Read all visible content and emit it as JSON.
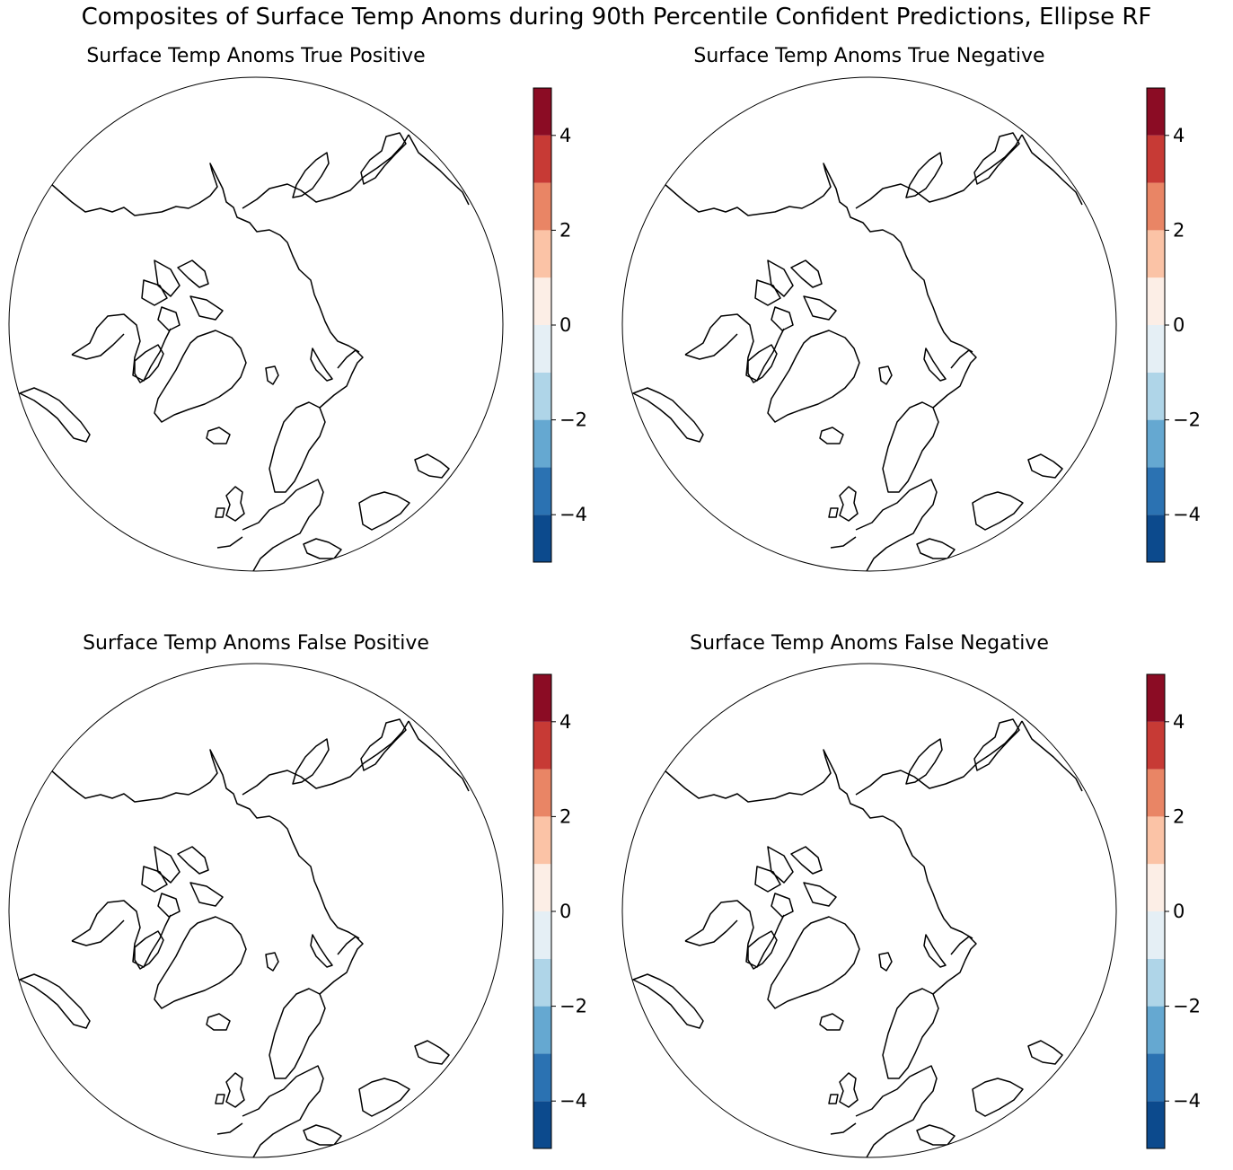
{
  "figure": {
    "title": "Composites of Surface Temp Anoms during 90th Percentile Confident Predictions, Ellipse RF"
  },
  "panels": [
    {
      "title": "Surface Temp Anoms True Positive"
    },
    {
      "title": "Surface Temp Anoms True Negative"
    },
    {
      "title": "Surface Temp Anoms False Positive"
    },
    {
      "title": "Surface Temp Anoms False Negative"
    }
  ],
  "map": {
    "projection": "north-polar-orthographic",
    "field": "blank (no shading)",
    "coastline_color": "#000000"
  },
  "colorbar": {
    "min": -5,
    "max": 5,
    "bounds": [
      -5,
      -4,
      -3,
      -2,
      -1,
      0,
      1,
      2,
      3,
      4,
      5
    ],
    "colors": [
      "#0c4a8d",
      "#2b72b2",
      "#65a8d1",
      "#afd5e8",
      "#e5eff5",
      "#fceee6",
      "#fbc3a6",
      "#e98565",
      "#c73a35",
      "#8b0c24"
    ],
    "ticks": [
      "−4",
      "−2",
      "0",
      "2",
      "4"
    ],
    "tick_values": [
      -4,
      -2,
      0,
      2,
      4
    ]
  }
}
